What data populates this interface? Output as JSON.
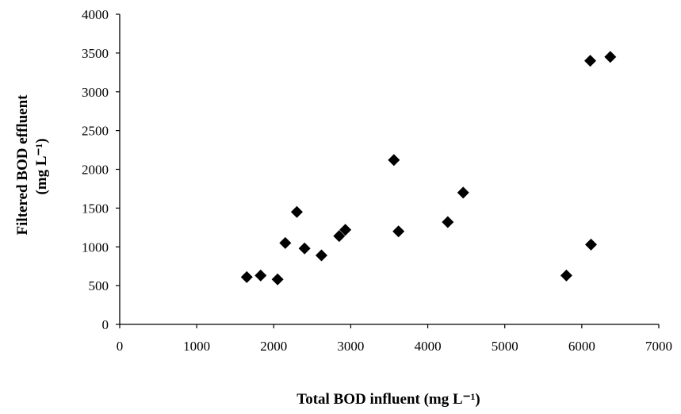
{
  "chart_data": {
    "type": "scatter",
    "xlabel": "Total BOD influent (mg L⁻¹)",
    "ylabel_line1": "Filtered BOD effluent",
    "ylabel_line2": "(mg L⁻¹)",
    "xlim": [
      0,
      7000
    ],
    "ylim": [
      0,
      4000
    ],
    "x_ticks": [
      0,
      1000,
      2000,
      3000,
      4000,
      5000,
      6000,
      7000
    ],
    "y_ticks": [
      0,
      500,
      1000,
      1500,
      2000,
      2500,
      3000,
      3500,
      4000
    ],
    "grid": false,
    "marker": "diamond",
    "marker_color": "#000000",
    "series": [
      {
        "points": [
          {
            "x": 1650,
            "y": 610
          },
          {
            "x": 1830,
            "y": 630
          },
          {
            "x": 2050,
            "y": 580
          },
          {
            "x": 2150,
            "y": 1050
          },
          {
            "x": 2300,
            "y": 1450
          },
          {
            "x": 2400,
            "y": 980
          },
          {
            "x": 2620,
            "y": 890
          },
          {
            "x": 2850,
            "y": 1140
          },
          {
            "x": 2930,
            "y": 1220
          },
          {
            "x": 3560,
            "y": 2120
          },
          {
            "x": 3620,
            "y": 1200
          },
          {
            "x": 4260,
            "y": 1320
          },
          {
            "x": 4460,
            "y": 1700
          },
          {
            "x": 5800,
            "y": 630
          },
          {
            "x": 6120,
            "y": 1030
          },
          {
            "x": 6110,
            "y": 3400
          },
          {
            "x": 6370,
            "y": 3450
          }
        ]
      }
    ]
  }
}
